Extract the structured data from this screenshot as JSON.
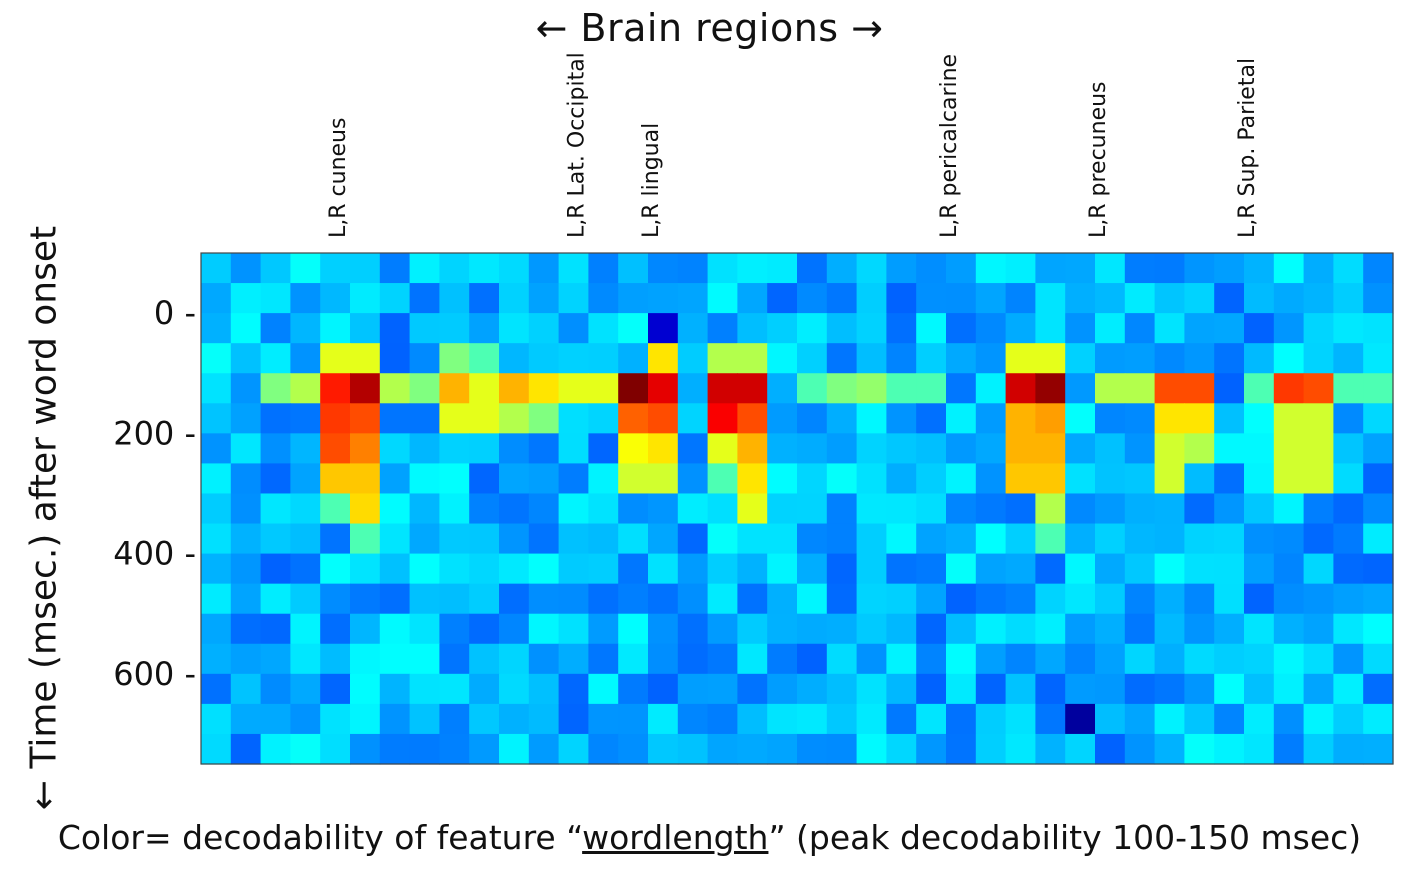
{
  "chart_data": {
    "type": "heatmap",
    "title": "← Brain regions →",
    "ylabel": "← Time (msec.) after word onset",
    "caption": {
      "prefix": "Color= decodability of feature “",
      "feature": "wordlength",
      "suffix": "” (peak decodability 100-150 msec)"
    },
    "y_ticks": [
      {
        "label": "0 -",
        "value": 0
      },
      {
        "label": "200 -",
        "value": 200
      },
      {
        "label": "400 -",
        "value": 400
      },
      {
        "label": "600 -",
        "value": 600
      }
    ],
    "ylim": [
      -100,
      750
    ],
    "columns": 40,
    "rows": 17,
    "row_step_msec": 50,
    "region_labels": [
      {
        "label": "L,R cuneus",
        "column": 4.5
      },
      {
        "label": "L,R Lat. Occipital",
        "column": 12.5
      },
      {
        "label": "L,R lingual",
        "column": 15
      },
      {
        "label": "L,R pericalcarine",
        "column": 25
      },
      {
        "label": "L,R precuneus",
        "column": 30
      },
      {
        "label": "L,R Sup. Parietal",
        "column": 35
      }
    ],
    "colormap": "jet",
    "value_range": [
      0,
      1
    ],
    "background_level": 0.3,
    "hotspots": [
      {
        "row": 3,
        "column": 4,
        "value": 0.6
      },
      {
        "row": 4,
        "column": 4,
        "value": 0.85
      },
      {
        "row": 5,
        "column": 4,
        "value": 0.82
      },
      {
        "row": 6,
        "column": 4,
        "value": 0.8
      },
      {
        "row": 7,
        "column": 4,
        "value": 0.68
      },
      {
        "row": 8,
        "column": 4,
        "value": 0.45
      },
      {
        "row": 3,
        "column": 5,
        "value": 0.6
      },
      {
        "row": 4,
        "column": 5,
        "value": 0.95
      },
      {
        "row": 5,
        "column": 5,
        "value": 0.8
      },
      {
        "row": 6,
        "column": 5,
        "value": 0.75
      },
      {
        "row": 7,
        "column": 5,
        "value": 0.68
      },
      {
        "row": 8,
        "column": 5,
        "value": 0.66
      },
      {
        "row": 9,
        "column": 5,
        "value": 0.45
      },
      {
        "row": 4,
        "column": 3,
        "value": 0.55
      },
      {
        "row": 4,
        "column": 2,
        "value": 0.5
      },
      {
        "row": 4,
        "column": 6,
        "value": 0.55
      },
      {
        "row": 4,
        "column": 7,
        "value": 0.5
      },
      {
        "row": 4,
        "column": 8,
        "value": 0.7
      },
      {
        "row": 4,
        "column": 9,
        "value": 0.6
      },
      {
        "row": 4,
        "column": 10,
        "value": 0.7
      },
      {
        "row": 4,
        "column": 11,
        "value": 0.65
      },
      {
        "row": 4,
        "column": 12,
        "value": 0.6
      },
      {
        "row": 4,
        "column": 13,
        "value": 0.6
      },
      {
        "row": 5,
        "column": 8,
        "value": 0.6
      },
      {
        "row": 5,
        "column": 9,
        "value": 0.6
      },
      {
        "row": 5,
        "column": 10,
        "value": 0.55
      },
      {
        "row": 5,
        "column": 11,
        "value": 0.5
      },
      {
        "row": 3,
        "column": 8,
        "value": 0.5
      },
      {
        "row": 3,
        "column": 9,
        "value": 0.45
      },
      {
        "row": 4,
        "column": 14,
        "value": 1.0
      },
      {
        "row": 5,
        "column": 14,
        "value": 0.78
      },
      {
        "row": 6,
        "column": 14,
        "value": 0.62
      },
      {
        "row": 7,
        "column": 14,
        "value": 0.58
      },
      {
        "row": 3,
        "column": 15,
        "value": 0.65
      },
      {
        "row": 4,
        "column": 15,
        "value": 0.9
      },
      {
        "row": 5,
        "column": 15,
        "value": 0.8
      },
      {
        "row": 6,
        "column": 15,
        "value": 0.65
      },
      {
        "row": 7,
        "column": 15,
        "value": 0.58
      },
      {
        "row": 2,
        "column": 15,
        "value": 0.08
      },
      {
        "row": 3,
        "column": 17,
        "value": 0.55
      },
      {
        "row": 4,
        "column": 17,
        "value": 0.92
      },
      {
        "row": 5,
        "column": 17,
        "value": 0.88
      },
      {
        "row": 6,
        "column": 17,
        "value": 0.6
      },
      {
        "row": 7,
        "column": 17,
        "value": 0.45
      },
      {
        "row": 3,
        "column": 18,
        "value": 0.55
      },
      {
        "row": 4,
        "column": 18,
        "value": 0.92
      },
      {
        "row": 5,
        "column": 18,
        "value": 0.8
      },
      {
        "row": 6,
        "column": 18,
        "value": 0.7
      },
      {
        "row": 7,
        "column": 18,
        "value": 0.65
      },
      {
        "row": 8,
        "column": 18,
        "value": 0.6
      },
      {
        "row": 4,
        "column": 20,
        "value": 0.45
      },
      {
        "row": 4,
        "column": 21,
        "value": 0.5
      },
      {
        "row": 4,
        "column": 22,
        "value": 0.52
      },
      {
        "row": 4,
        "column": 23,
        "value": 0.45
      },
      {
        "row": 4,
        "column": 24,
        "value": 0.45
      },
      {
        "row": 3,
        "column": 27,
        "value": 0.6
      },
      {
        "row": 4,
        "column": 27,
        "value": 0.92
      },
      {
        "row": 5,
        "column": 27,
        "value": 0.7
      },
      {
        "row": 6,
        "column": 27,
        "value": 0.7
      },
      {
        "row": 7,
        "column": 27,
        "value": 0.68
      },
      {
        "row": 3,
        "column": 28,
        "value": 0.6
      },
      {
        "row": 4,
        "column": 28,
        "value": 0.98
      },
      {
        "row": 5,
        "column": 28,
        "value": 0.72
      },
      {
        "row": 6,
        "column": 28,
        "value": 0.7
      },
      {
        "row": 7,
        "column": 28,
        "value": 0.68
      },
      {
        "row": 8,
        "column": 28,
        "value": 0.55
      },
      {
        "row": 9,
        "column": 28,
        "value": 0.45
      },
      {
        "row": 4,
        "column": 30,
        "value": 0.55
      },
      {
        "row": 4,
        "column": 31,
        "value": 0.55
      },
      {
        "row": 4,
        "column": 32,
        "value": 0.8
      },
      {
        "row": 5,
        "column": 32,
        "value": 0.65
      },
      {
        "row": 6,
        "column": 32,
        "value": 0.58
      },
      {
        "row": 7,
        "column": 32,
        "value": 0.58
      },
      {
        "row": 4,
        "column": 33,
        "value": 0.8
      },
      {
        "row": 5,
        "column": 33,
        "value": 0.65
      },
      {
        "row": 6,
        "column": 33,
        "value": 0.55
      },
      {
        "row": 4,
        "column": 36,
        "value": 0.82
      },
      {
        "row": 5,
        "column": 36,
        "value": 0.58
      },
      {
        "row": 6,
        "column": 36,
        "value": 0.58
      },
      {
        "row": 7,
        "column": 36,
        "value": 0.58
      },
      {
        "row": 4,
        "column": 37,
        "value": 0.8
      },
      {
        "row": 5,
        "column": 37,
        "value": 0.58
      },
      {
        "row": 6,
        "column": 37,
        "value": 0.58
      },
      {
        "row": 7,
        "column": 37,
        "value": 0.58
      },
      {
        "row": 4,
        "column": 35,
        "value": 0.45
      },
      {
        "row": 4,
        "column": 38,
        "value": 0.45
      },
      {
        "row": 4,
        "column": 39,
        "value": 0.45
      },
      {
        "row": 15,
        "column": 29,
        "value": 0.03
      }
    ]
  }
}
